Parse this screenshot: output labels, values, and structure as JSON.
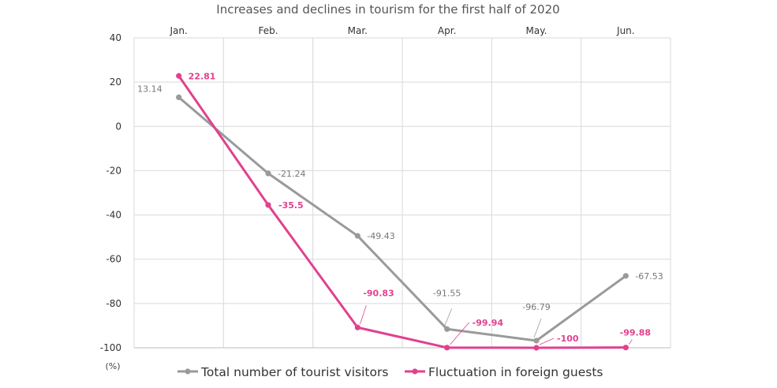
{
  "chart_data": {
    "type": "line",
    "title": "Increases and declines in tourism for the first half of 2020",
    "xlabel": "",
    "ylabel": "(%)",
    "categories": [
      "Jan.",
      "Feb.",
      "Mar.",
      "Apr.",
      "May.",
      "Jun."
    ],
    "ylim": [
      -100,
      40
    ],
    "yticks": [
      40,
      20,
      0,
      -20,
      -40,
      -60,
      -80,
      -100
    ],
    "grid": true,
    "legend_position": "bottom",
    "series": [
      {
        "name": "Total number of tourist visitors",
        "values": [
          13.14,
          -21.24,
          -49.43,
          -91.55,
          -96.79,
          -67.53
        ],
        "labels": [
          "13.14",
          "-21.24",
          "-49.43",
          "-91.55",
          "-96.79",
          "-67.53"
        ],
        "color": "#9a9a9a"
      },
      {
        "name": "Fluctuation in foreign guests",
        "values": [
          22.81,
          -35.5,
          -90.83,
          -99.94,
          -100,
          -99.88
        ],
        "labels": [
          "22.81",
          "-35.5",
          "-90.83",
          "-99.94",
          "-100",
          "-99.88"
        ],
        "color": "#e0418f"
      }
    ]
  }
}
